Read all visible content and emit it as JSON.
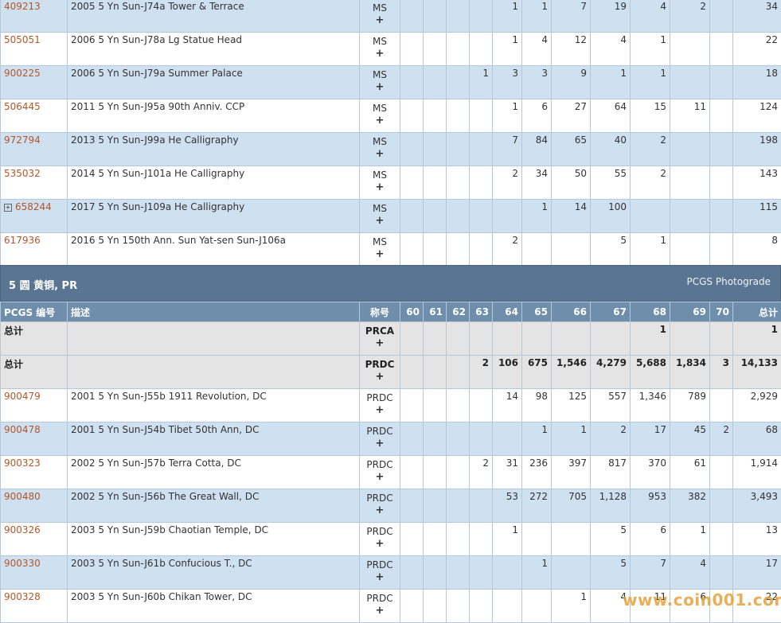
{
  "section_pr": {
    "title": "5 圆 黄铜, PR",
    "link": "PCGS Photograde"
  },
  "headers": [
    "PCGS 编号",
    "描述",
    "称号",
    "60",
    "61",
    "62",
    "63",
    "64",
    "65",
    "66",
    "67",
    "68",
    "69",
    "70",
    "总计"
  ],
  "top_rows": [
    {
      "id": "409213",
      "desc": "2005 5 Yn Sun-J74a Tower & Terrace",
      "grade": "MS",
      "plus": "+",
      "c": [
        "",
        "",
        "",
        "",
        "1",
        "1",
        "7",
        "19",
        "4",
        "2",
        "",
        "34"
      ]
    },
    {
      "id": "505051",
      "desc": "2006 5 Yn Sun-J78a Lg Statue Head",
      "grade": "MS",
      "plus": "+",
      "c": [
        "",
        "",
        "",
        "",
        "1",
        "4",
        "12",
        "4",
        "1",
        "",
        "",
        "22"
      ]
    },
    {
      "id": "900225",
      "desc": "2006 5 Yn Sun-J79a Summer Palace",
      "grade": "MS",
      "plus": "+",
      "c": [
        "",
        "",
        "",
        "1",
        "3",
        "3",
        "9",
        "1",
        "1",
        "",
        "",
        "18"
      ]
    },
    {
      "id": "506445",
      "desc": "2011 5 Yn Sun-J95a 90th Anniv. CCP",
      "grade": "MS",
      "plus": "+",
      "c": [
        "",
        "",
        "",
        "",
        "1",
        "6",
        "27",
        "64",
        "15",
        "11",
        "",
        "124"
      ]
    },
    {
      "id": "972794",
      "desc": "2013 5 Yn Sun-J99a He Calligraphy",
      "grade": "MS",
      "plus": "+",
      "c": [
        "",
        "",
        "",
        "",
        "7",
        "84",
        "65",
        "40",
        "2",
        "",
        "",
        "198"
      ]
    },
    {
      "id": "535032",
      "desc": "2014 5 Yn Sun-J101a He Calligraphy",
      "grade": "MS",
      "plus": "+",
      "c": [
        "",
        "",
        "",
        "",
        "2",
        "34",
        "50",
        "55",
        "2",
        "",
        "",
        "143"
      ]
    },
    {
      "id": "658244",
      "desc": "2017 5 Yn Sun-J109a He Calligraphy",
      "grade": "MS",
      "plus": "+",
      "expand": "+",
      "c": [
        "",
        "",
        "",
        "",
        "",
        "1",
        "14",
        "100",
        "",
        "",
        "",
        "115"
      ]
    },
    {
      "id": "617936",
      "desc": "2016 5 Yn 150th Ann. Sun Yat-sen Sun-J106a",
      "grade": "MS",
      "plus": "+",
      "c": [
        "",
        "",
        "",
        "",
        "2",
        "",
        "",
        "5",
        "1",
        "",
        "",
        "8"
      ]
    }
  ],
  "totals": [
    {
      "label": "总计",
      "grade": "PRCA",
      "plus": "+",
      "c": [
        "",
        "",
        "",
        "",
        "",
        "",
        "",
        "",
        "1",
        "",
        "",
        "1"
      ]
    },
    {
      "label": "总计",
      "grade": "PRDC",
      "plus": "+",
      "c": [
        "",
        "",
        "",
        "2",
        "106",
        "675",
        "1,546",
        "4,279",
        "5,688",
        "1,834",
        "3",
        "14,133"
      ]
    }
  ],
  "pr_rows": [
    {
      "id": "900479",
      "desc": "2001 5 Yn Sun-J55b 1911 Revolution, DC",
      "grade": "PRDC",
      "plus": "+",
      "c": [
        "",
        "",
        "",
        "",
        "14",
        "98",
        "125",
        "557",
        "1,346",
        "789",
        "",
        "2,929"
      ]
    },
    {
      "id": "900478",
      "desc": "2001 5 Yn Sun-J54b Tibet 50th Ann, DC",
      "grade": "PRDC",
      "plus": "+",
      "c": [
        "",
        "",
        "",
        "",
        "",
        "1",
        "1",
        "2",
        "17",
        "45",
        "2",
        "68"
      ]
    },
    {
      "id": "900323",
      "desc": "2002 5 Yn Sun-J57b Terra Cotta, DC",
      "grade": "PRDC",
      "plus": "+",
      "c": [
        "",
        "",
        "",
        "2",
        "31",
        "236",
        "397",
        "817",
        "370",
        "61",
        "",
        "1,914"
      ]
    },
    {
      "id": "900480",
      "desc": "2002 5 Yn Sun-J56b The Great Wall, DC",
      "grade": "PRDC",
      "plus": "+",
      "c": [
        "",
        "",
        "",
        "",
        "53",
        "272",
        "705",
        "1,128",
        "953",
        "382",
        "",
        "3,493"
      ]
    },
    {
      "id": "900326",
      "desc": "2003 5 Yn Sun-J59b Chaotian Temple, DC",
      "grade": "PRDC",
      "plus": "+",
      "c": [
        "",
        "",
        "",
        "",
        "1",
        "",
        "",
        "5",
        "6",
        "1",
        "",
        "13"
      ]
    },
    {
      "id": "900330",
      "desc": "2003 5 Yn Sun-J61b Confucious T., DC",
      "grade": "PRDC",
      "plus": "+",
      "c": [
        "",
        "",
        "",
        "",
        "",
        "1",
        "",
        "5",
        "7",
        "4",
        "",
        "17"
      ]
    },
    {
      "id": "900328",
      "desc": "2003 5 Yn Sun-J60b Chikan Tower, DC",
      "grade": "PRDC",
      "plus": "+",
      "c": [
        "",
        "",
        "",
        "",
        "",
        "",
        "1",
        "4",
        "11",
        "6",
        "",
        "22"
      ]
    }
  ],
  "watermark": "www.coin001.com"
}
